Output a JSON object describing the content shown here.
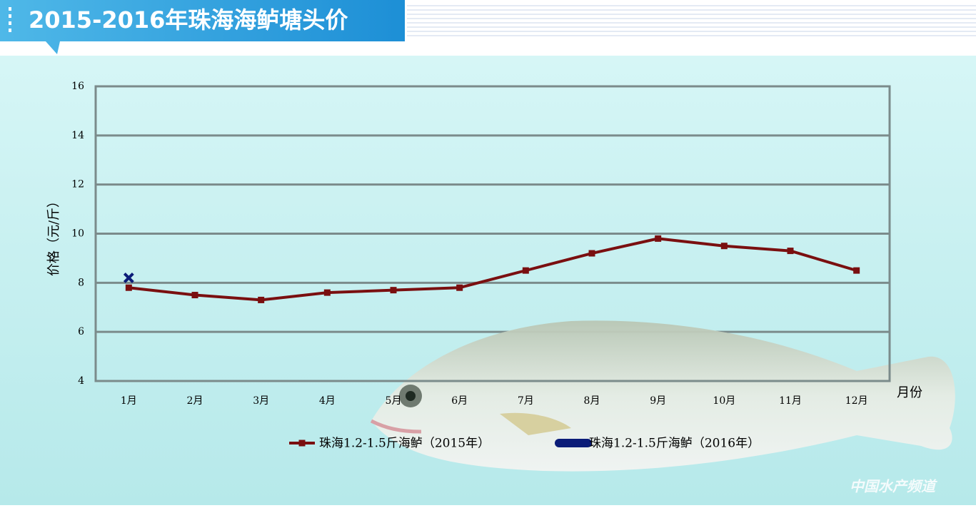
{
  "chart_data": {
    "type": "line",
    "title": "2015-2016年珠海海鲈塘头价",
    "categories": [
      "1月",
      "2月",
      "3月",
      "4月",
      "5月",
      "6月",
      "7月",
      "8月",
      "9月",
      "10月",
      "11月",
      "12月"
    ],
    "series": [
      {
        "name": "珠海1.2-1.5斤海鲈（2015年）",
        "color": "#7a0f10",
        "marker": "square",
        "values": [
          7.8,
          7.5,
          7.3,
          7.6,
          7.7,
          7.8,
          8.5,
          9.2,
          9.8,
          9.5,
          9.3,
          8.5
        ]
      },
      {
        "name": "珠海1.2-1.5斤海鲈（2016年）",
        "color": "#0b1c78",
        "marker": "x",
        "values": [
          8.2,
          null,
          null,
          null,
          null,
          null,
          null,
          null,
          null,
          null,
          null,
          null
        ]
      }
    ],
    "ylim": [
      4,
      16
    ],
    "yticks": [
      4,
      6,
      8,
      10,
      12,
      14,
      16
    ],
    "grid": true,
    "y_label": "价格（元/斤）",
    "x_label": "月份",
    "watermark": "中国水产频道"
  }
}
